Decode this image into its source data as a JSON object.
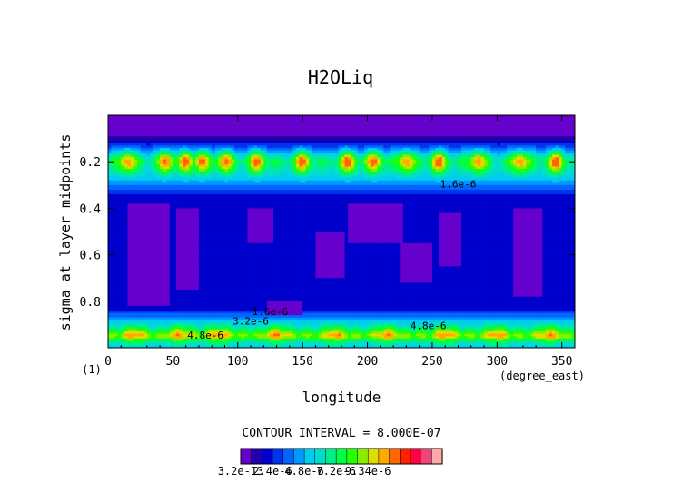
{
  "chart_data": {
    "type": "heatmap",
    "title": "H2OLiq",
    "xlabel": "longitude",
    "x_units": "(degree_east)",
    "ylabel": "sigma at layer midpoints",
    "y_units": "(1)",
    "xlim": [
      0,
      360
    ],
    "ylim": [
      0,
      1
    ],
    "y_inverted": true,
    "x_ticks": [
      "0",
      "50",
      "100",
      "150",
      "200",
      "250",
      "300",
      "350"
    ],
    "y_ticks": [
      "0.2",
      "0.4",
      "0.6",
      "0.8"
    ],
    "contour_interval_text": "CONTOUR INTERVAL = 8.000E-07",
    "contour_labels": [
      {
        "text": "4.8e-6",
        "lon": 75,
        "sigma": 0.96
      },
      {
        "text": "3.2e-6",
        "lon": 110,
        "sigma": 0.9
      },
      {
        "text": "1.6e-6",
        "lon": 125,
        "sigma": 0.86
      },
      {
        "text": "4.8e-6",
        "lon": 247,
        "sigma": 0.92
      },
      {
        "text": "1.6e-6",
        "lon": 270,
        "sigma": 0.31
      }
    ],
    "colorbar": {
      "colors": [
        "#6600cc",
        "#2200aa",
        "#0000cc",
        "#0033ee",
        "#0066ff",
        "#0099ff",
        "#00ccee",
        "#00ddcc",
        "#00ee88",
        "#00ff44",
        "#22ff00",
        "#88ee00",
        "#dddd00",
        "#ffaa00",
        "#ff6600",
        "#ff2200",
        "#ff0044",
        "#ee4477",
        "#ffaaaa"
      ],
      "labels": [
        "3.2e-13",
        "2.4e-6",
        "4.8e-6",
        "7.2e-6",
        "9.34e-6"
      ],
      "label_extra": "9.34e-6",
      "range": [
        3.2e-13,
        9.34e-06
      ]
    },
    "sigma_profile": [
      {
        "sigma": 0.0,
        "level": 0
      },
      {
        "sigma": 0.08,
        "level": 0
      },
      {
        "sigma": 0.1,
        "level": 1
      },
      {
        "sigma": 0.13,
        "level": 3
      },
      {
        "sigma": 0.16,
        "level": 6
      },
      {
        "sigma": 0.19,
        "level": 9
      },
      {
        "sigma": 0.21,
        "level": 9
      },
      {
        "sigma": 0.25,
        "level": 7
      },
      {
        "sigma": 0.29,
        "level": 5
      },
      {
        "sigma": 0.33,
        "level": 3
      },
      {
        "sigma": 0.36,
        "level": 2
      },
      {
        "sigma": 0.4,
        "level": 2
      },
      {
        "sigma": 0.5,
        "level": 2
      },
      {
        "sigma": 0.6,
        "level": 2
      },
      {
        "sigma": 0.75,
        "level": 2
      },
      {
        "sigma": 0.83,
        "level": 2
      },
      {
        "sigma": 0.86,
        "level": 4
      },
      {
        "sigma": 0.89,
        "level": 6
      },
      {
        "sigma": 0.92,
        "level": 8
      },
      {
        "sigma": 0.95,
        "level": 11
      },
      {
        "sigma": 0.97,
        "level": 8
      },
      {
        "sigma": 1.0,
        "level": 6
      }
    ],
    "upper_peaks_lon": [
      15,
      45,
      60,
      72,
      90,
      115,
      150,
      185,
      205,
      230,
      255,
      285,
      318,
      345
    ],
    "lower_peaks_lon": [
      20,
      55,
      85,
      130,
      175,
      215,
      260,
      300,
      340
    ],
    "minima_patches": [
      {
        "lon": [
          14,
          48
        ],
        "sigma": [
          0.38,
          0.82
        ]
      },
      {
        "lon": [
          52,
          70
        ],
        "sigma": [
          0.4,
          0.75
        ]
      },
      {
        "lon": [
          108,
          128
        ],
        "sigma": [
          0.4,
          0.55
        ]
      },
      {
        "lon": [
          160,
          182
        ],
        "sigma": [
          0.5,
          0.7
        ]
      },
      {
        "lon": [
          185,
          228
        ],
        "sigma": [
          0.38,
          0.55
        ]
      },
      {
        "lon": [
          225,
          250
        ],
        "sigma": [
          0.55,
          0.72
        ]
      },
      {
        "lon": [
          255,
          272
        ],
        "sigma": [
          0.42,
          0.65
        ]
      },
      {
        "lon": [
          312,
          335
        ],
        "sigma": [
          0.4,
          0.78
        ]
      },
      {
        "lon": [
          122,
          150
        ],
        "sigma": [
          0.8,
          0.86
        ]
      }
    ]
  }
}
